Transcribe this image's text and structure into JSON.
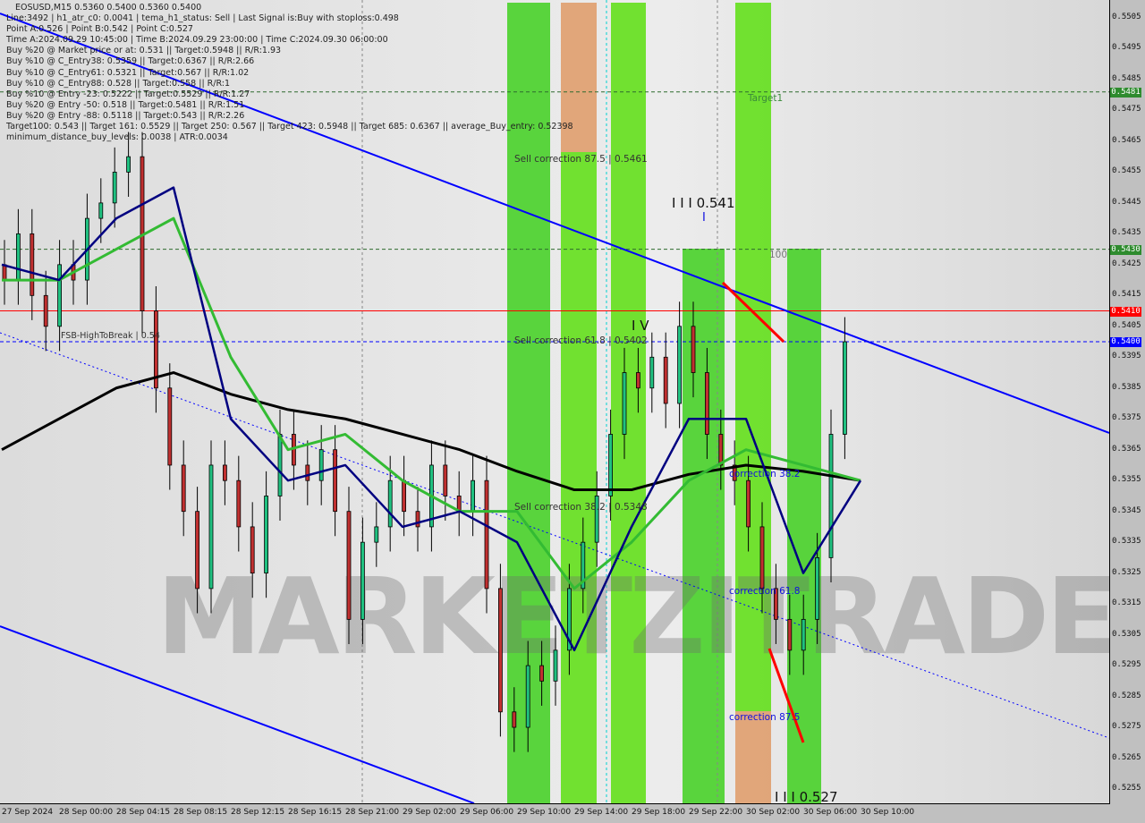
{
  "header": {
    "symbol_line": "EOSUSD,M15  0.5360 0.5400 0.5360 0.5400",
    "info_lines": [
      "Line:3492 | h1_atr_c0: 0.0041 | tema_h1_status: Sell | Last Signal is:Buy with stoploss:0.498",
      "Point A:0.526 | Point B:0.542 | Point C:0.527",
      "Time A:2024.09.29 10:45:00 | Time B:2024.09.29 23:00:00 | Time C:2024.09.30 06:00:00",
      "Buy %20 @ Market price or at: 0.531 || Target:0.5948 || R/R:1.93",
      "Buy %10 @ C_Entry38: 0.5359 || Target:0.6367 || R/R:2.66",
      "Buy %10 @ C_Entry61: 0.5321 || Target:0.567 || R/R:1.02",
      "Buy %10 @ C_Entry88: 0.528 || Target:0.558 || R/R:1",
      "Buy %10 @ Entry -23: 0.5222 || Target:0.5529 || R/R:1.27",
      "Buy %20 @ Entry -50: 0.518 || Target:0.5481 || R/R:1.51",
      "Buy %20 @ Entry -88: 0.5118 || Target:0.543 || R/R:2.26",
      "Target100: 0.543 || Target 161: 0.5529 || Target 250: 0.567 || Target 423: 0.5948 || Target 685: 0.6367 || average_Buy_entry: 0.52398",
      "minimum_distance_buy_levels: 0.0038 | ATR:0.0034"
    ]
  },
  "annotations": {
    "sell_corr_875": "Sell correction 87.5 | 0.5461",
    "sell_corr_618": "Sell correction 61.8 | 0.5402",
    "sell_corr_382": "Sell correction 38.2 | 0.5348",
    "wave_iii_high": "I I I 0.541",
    "wave_i": "I",
    "wave_iv": "I V",
    "level_100": "100",
    "target1": "Target1",
    "fsb": "FSB-HighToBreak | 0.54",
    "corr_382": "correction 38.2",
    "corr_618": "correction 61.8",
    "corr_875": "correction 87.5",
    "wave_iii_low": "I I I 0.527",
    "watermark": "MARKETZITRADE"
  },
  "chart_data": {
    "type": "candlestick",
    "ylim": [
      0.525,
      0.551
    ],
    "y_ticks": [
      "0.5505",
      "0.5495",
      "0.5485",
      "0.5475",
      "0.5465",
      "0.5455",
      "0.5445",
      "0.5435",
      "0.5425",
      "0.5415",
      "0.5405",
      "0.5395",
      "0.5385",
      "0.5375",
      "0.5365",
      "0.5355",
      "0.5345",
      "0.5335",
      "0.5325",
      "0.5315",
      "0.5305",
      "0.5295",
      "0.5285",
      "0.5275",
      "0.5265",
      "0.5255"
    ],
    "x_ticks": [
      "27 Sep 2024",
      "28 Sep 00:00",
      "28 Sep 04:15",
      "28 Sep 08:15",
      "28 Sep 12:15",
      "28 Sep 16:15",
      "28 Sep 21:00",
      "29 Sep 02:00",
      "29 Sep 06:00",
      "29 Sep 10:00",
      "29 Sep 14:00",
      "29 Sep 18:00",
      "29 Sep 22:00",
      "30 Sep 02:00",
      "30 Sep 06:00",
      "30 Sep 10:00"
    ],
    "price_tags": [
      {
        "value": "0.5481",
        "color": "#2e8b2e"
      },
      {
        "value": "0.5430",
        "color": "#2e8b2e"
      },
      {
        "value": "0.5410",
        "color": "#ff0000"
      },
      {
        "value": "0.5400",
        "color": "#0000ff"
      }
    ],
    "closes": [
      0.542,
      0.5435,
      0.5415,
      0.5405,
      0.5425,
      0.542,
      0.544,
      0.5445,
      0.5455,
      0.546,
      0.541,
      0.5385,
      0.536,
      0.5345,
      0.532,
      0.536,
      0.5355,
      0.534,
      0.5325,
      0.535,
      0.537,
      0.536,
      0.5355,
      0.5365,
      0.5345,
      0.531,
      0.5335,
      0.534,
      0.5355,
      0.5345,
      0.534,
      0.536,
      0.535,
      0.5345,
      0.5355,
      0.532,
      0.528,
      0.5275,
      0.5295,
      0.529,
      0.53,
      0.532,
      0.5335,
      0.535,
      0.537,
      0.539,
      0.5385,
      0.5395,
      0.538,
      0.5405,
      0.539,
      0.537,
      0.536,
      0.5355,
      0.534,
      0.532,
      0.531,
      0.53,
      0.531,
      0.533,
      0.537,
      0.54
    ],
    "ma_slow": [
      0.5365,
      0.5375,
      0.5385,
      0.539,
      0.5383,
      0.5378,
      0.5375,
      0.537,
      0.5365,
      0.5358,
      0.5352,
      0.5352,
      0.5357,
      0.536,
      0.5358,
      0.5355
    ],
    "ma_mid": [
      0.542,
      0.542,
      0.543,
      0.544,
      0.5395,
      0.5365,
      0.537,
      0.5355,
      0.5345,
      0.5345,
      0.532,
      0.5335,
      0.5355,
      0.5365,
      0.536,
      0.5355
    ],
    "ma_fast": [
      0.5425,
      0.542,
      0.544,
      0.545,
      0.5375,
      0.5355,
      0.536,
      0.534,
      0.5345,
      0.5335,
      0.53,
      0.534,
      0.5375,
      0.5375,
      0.5325,
      0.5355
    ],
    "horizontal_levels": [
      {
        "price": 0.5481,
        "color": "#2e6b2e",
        "style": "dashed"
      },
      {
        "price": 0.543,
        "color": "#2e6b2e",
        "style": "dashed"
      },
      {
        "price": 0.541,
        "color": "#ff0000",
        "style": "solid"
      },
      {
        "price": 0.54,
        "color": "#0000ff",
        "style": "dashed"
      }
    ],
    "colors": {
      "band_green": "#4cd12e",
      "band_lime": "#66e020",
      "band_orange": "#e0a070",
      "bull": "#20c080",
      "bear": "#c03030",
      "ma_slow": "#000000",
      "ma_mid": "#33bb33",
      "ma_fast": "#000080",
      "trend": "#0000ff"
    }
  }
}
